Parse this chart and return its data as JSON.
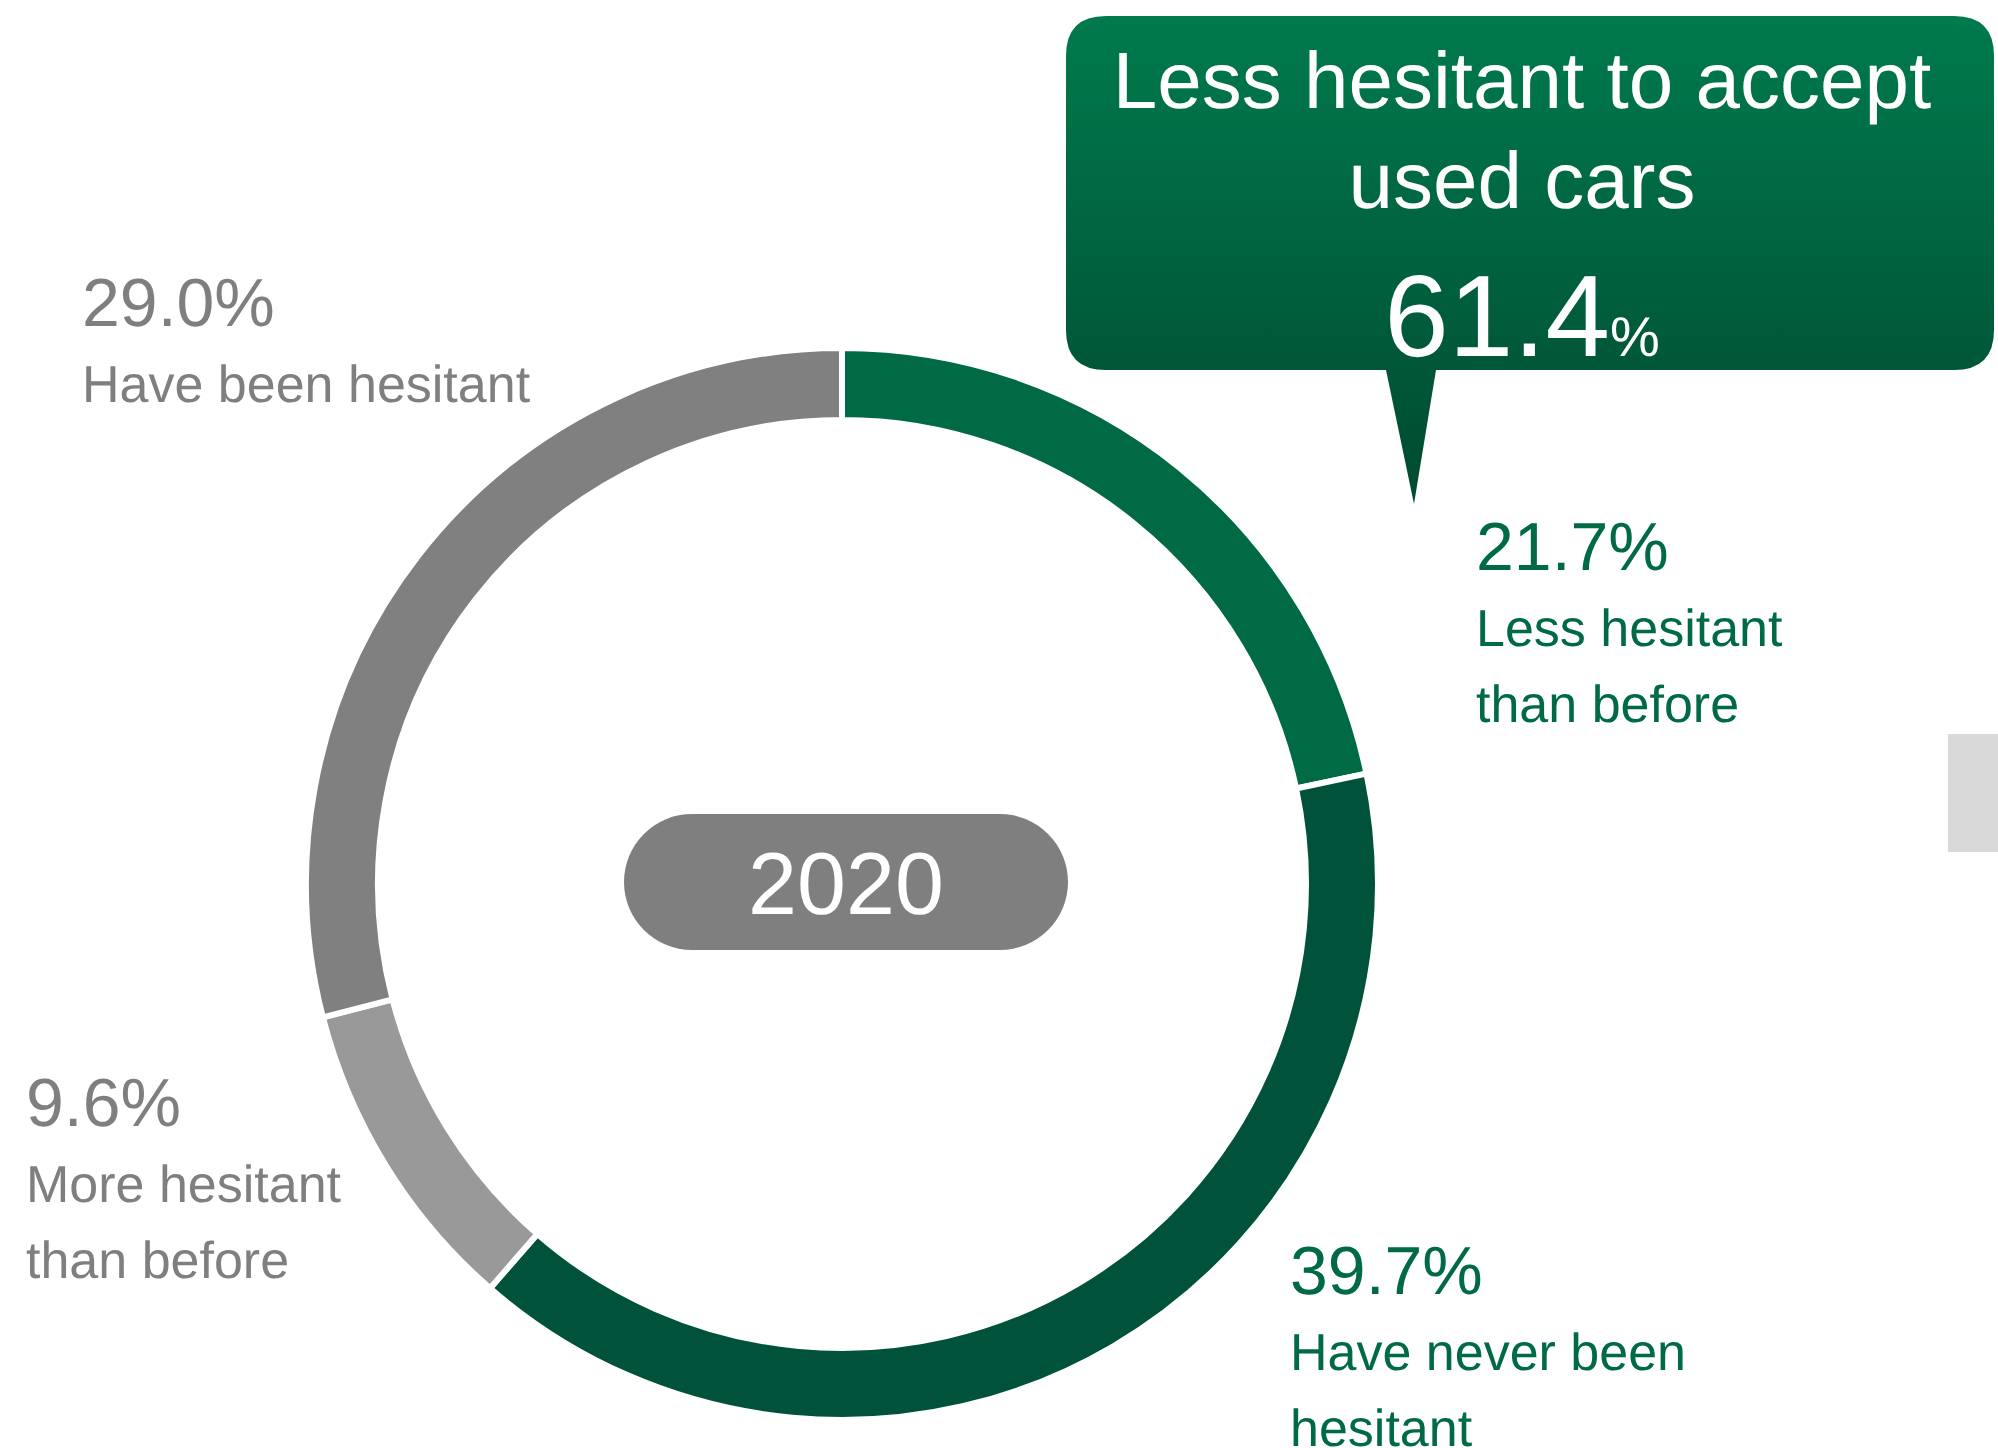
{
  "chart_data": {
    "type": "donut",
    "title": "2020",
    "categories": [
      "Less hesitant than before",
      "Have never been hesitant",
      "More hesitant than before",
      "Have been hesitant"
    ],
    "values": [
      21.7,
      39.7,
      9.6,
      29.0
    ],
    "colors": [
      "#006a45",
      "#00533a",
      "#999999",
      "#808080"
    ],
    "value_labels": [
      "21.7%",
      "39.7%",
      "9.6%",
      "29.0%"
    ],
    "annotations": [
      "Less hesitant to accept used cars",
      "61.4%"
    ]
  }
}
